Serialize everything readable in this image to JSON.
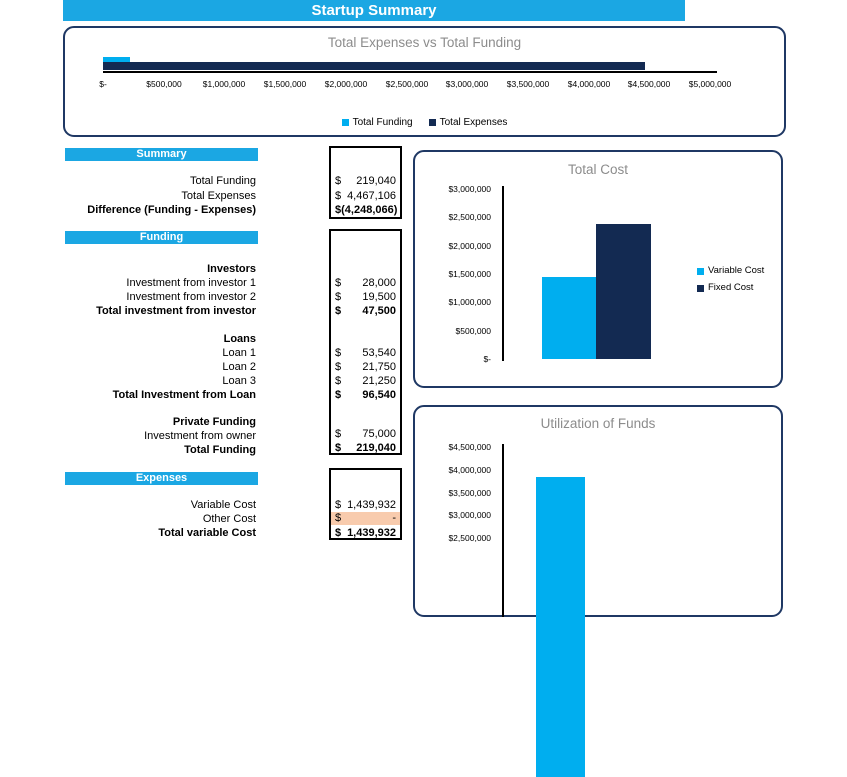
{
  "page": {
    "title": "Startup Summary"
  },
  "colors": {
    "accent_blue": "#1BA7E3",
    "chart_light_blue": "#00AEEF",
    "chart_navy": "#132A52",
    "chart_box_border": "#1F3864",
    "chart_title_gray": "#8C8C8C",
    "highlight_orange": "#F8CBAD"
  },
  "summary": {
    "header": "Summary",
    "rows": [
      {
        "label": "Total Funding",
        "cur": "$",
        "value": "219,040"
      },
      {
        "label": "Total Expenses",
        "cur": "$",
        "value": "4,467,106"
      },
      {
        "label": "Difference (Funding - Expenses)",
        "cur": "$",
        "value": "(4,248,066)",
        "bold": true
      }
    ]
  },
  "funding": {
    "header": "Funding",
    "groups": [
      {
        "title": "Investors",
        "rows": [
          {
            "label": "Investment from investor 1",
            "cur": "$",
            "value": "28,000"
          },
          {
            "label": "Investment from investor 2",
            "cur": "$",
            "value": "19,500"
          },
          {
            "label": "Total investment from investor",
            "cur": "$",
            "value": "47,500",
            "bold": true
          }
        ]
      },
      {
        "title": "Loans",
        "rows": [
          {
            "label": "Loan 1",
            "cur": "$",
            "value": "53,540"
          },
          {
            "label": "Loan 2",
            "cur": "$",
            "value": "21,750"
          },
          {
            "label": "Loan 3",
            "cur": "$",
            "value": "21,250"
          },
          {
            "label": "Total Investment from Loan",
            "cur": "$",
            "value": "96,540",
            "bold": true
          }
        ]
      },
      {
        "title": "Private Funding",
        "rows": [
          {
            "label": "Investment from owner",
            "cur": "$",
            "value": "75,000"
          },
          {
            "label": "Total Funding",
            "cur": "$",
            "value": "219,040",
            "bold": true
          }
        ]
      }
    ]
  },
  "expenses": {
    "header": "Expenses",
    "rows": [
      {
        "label": "Variable Cost",
        "cur": "$",
        "value": "1,439,932"
      },
      {
        "label": "Other Cost",
        "cur": "$",
        "value": "-",
        "highlighted": true
      },
      {
        "label": "Total variable Cost",
        "cur": "$",
        "value": "1,439,932",
        "bold": true
      }
    ]
  },
  "chart_data": [
    {
      "type": "bar",
      "orientation": "horizontal",
      "title": "Total Expenses vs Total Funding",
      "series": [
        {
          "name": "Total Funding",
          "value": 219040,
          "color": "#00AEEF"
        },
        {
          "name": "Total Expenses",
          "value": 4467106,
          "color": "#132A52"
        }
      ],
      "xlim": [
        0,
        5000000
      ],
      "x_tick_step": 500000,
      "x_tick_labels": [
        "$-",
        "$500,000",
        "$1,000,000",
        "$1,500,000",
        "$2,000,000",
        "$2,500,000",
        "$3,000,000",
        "$3,500,000",
        "$4,000,000",
        "$4,500,000",
        "$5,000,000"
      ],
      "legend_position": "bottom",
      "grid": false
    },
    {
      "type": "bar",
      "title": "Total Cost",
      "series": [
        {
          "name": "Variable Cost",
          "value": 1439932,
          "color": "#00AEEF"
        },
        {
          "name": "Fixed Cost",
          "value": 2385000,
          "color": "#132A52",
          "estimated": true
        }
      ],
      "ylim": [
        0,
        3000000
      ],
      "y_tick_step": 500000,
      "y_tick_labels": [
        "$3,000,000",
        "$2,500,000",
        "$2,000,000",
        "$1,500,000",
        "$1,000,000",
        "$500,000",
        "$-"
      ],
      "legend_position": "right",
      "grid": false
    },
    {
      "type": "bar",
      "title": "Utilization of Funds",
      "series": [
        {
          "name": "",
          "value": 3840000,
          "color": "#00AEEF",
          "estimated": true
        }
      ],
      "y_tick_step": 500000,
      "y_tick_labels_visible": [
        "$4,500,000",
        "$4,000,000",
        "$3,500,000",
        "$3,000,000",
        "$2,500,000"
      ],
      "cut_off_bottom": true,
      "grid": false
    }
  ]
}
